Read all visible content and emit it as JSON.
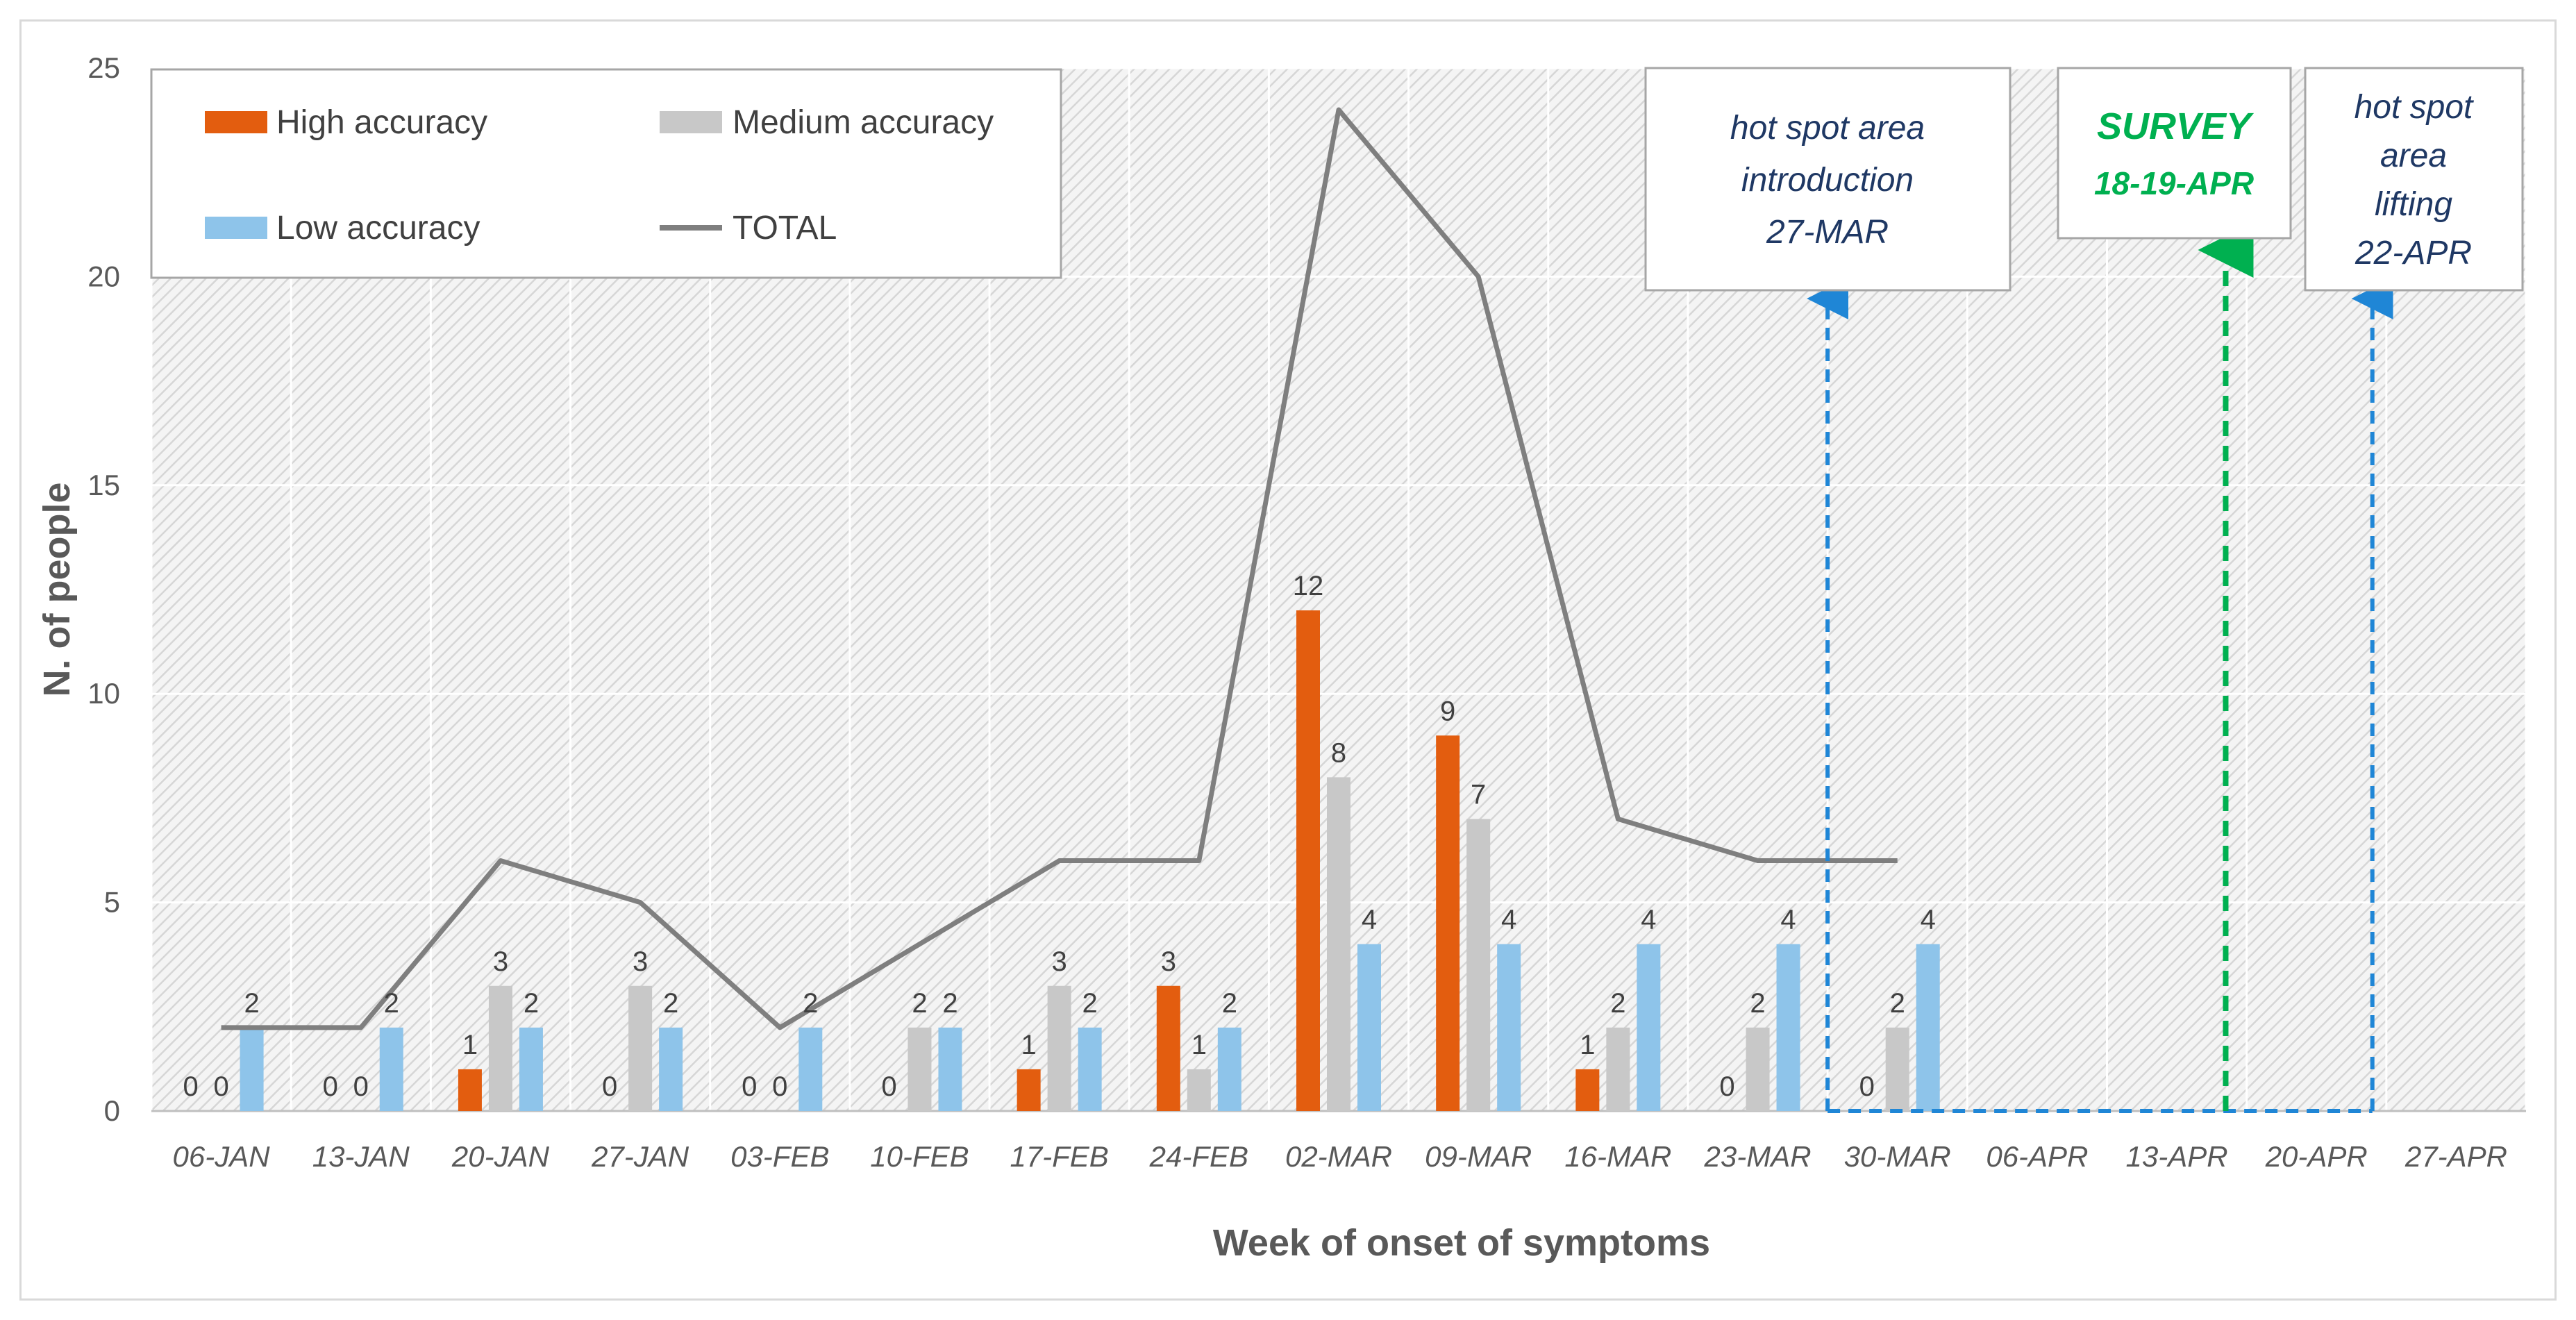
{
  "chart_data": {
    "type": "bar",
    "title": "",
    "xlabel": "Week of onset of symptoms",
    "ylabel": "N. of people",
    "ylim": [
      0,
      25
    ],
    "yticks": [
      0,
      5,
      10,
      15,
      20,
      25
    ],
    "grid": true,
    "legend_position": "top-left",
    "categories": [
      "06-JAN",
      "13-JAN",
      "20-JAN",
      "27-JAN",
      "03-FEB",
      "10-FEB",
      "17-FEB",
      "24-FEB",
      "02-MAR",
      "09-MAR",
      "16-MAR",
      "23-MAR",
      "30-MAR",
      "06-APR",
      "13-APR",
      "20-APR",
      "27-APR"
    ],
    "series": [
      {
        "name": "High accuracy",
        "kind": "bar",
        "color": "#e35d0f",
        "values": [
          0,
          0,
          1,
          0,
          0,
          0,
          1,
          3,
          12,
          9,
          1,
          0,
          0,
          null,
          null,
          null,
          null
        ]
      },
      {
        "name": "Medium accuracy",
        "kind": "bar",
        "color": "#c8c8c8",
        "values": [
          0,
          0,
          3,
          3,
          0,
          2,
          3,
          1,
          8,
          7,
          2,
          2,
          2,
          null,
          null,
          null,
          null
        ]
      },
      {
        "name": "Low accuracy",
        "kind": "bar",
        "color": "#8ec4ea",
        "values": [
          2,
          2,
          2,
          2,
          2,
          2,
          2,
          2,
          4,
          4,
          4,
          4,
          4,
          null,
          null,
          null,
          null
        ]
      },
      {
        "name": "TOTAL",
        "kind": "line",
        "color": "#7f7f7f",
        "values": [
          2,
          2,
          6,
          5,
          2,
          4,
          6,
          6,
          24,
          20,
          7,
          6,
          6,
          null,
          null,
          null,
          null
        ]
      }
    ],
    "data_labels": {
      "High accuracy": [
        "0",
        "0",
        "1",
        "0",
        "0",
        "0",
        "1",
        "3",
        "12",
        "9",
        "1",
        "0",
        "0"
      ],
      "Medium accuracy": [
        "0",
        "0",
        "3",
        "3",
        "0",
        "2",
        "3",
        "1",
        "8",
        "7",
        "2",
        "2",
        "2"
      ],
      "Low accuracy": [
        "2",
        "2",
        "2",
        "2",
        "2",
        "2",
        "2",
        "2",
        "4",
        "4",
        "4",
        "4",
        "4"
      ]
    },
    "annotations": [
      {
        "id": "intro",
        "lines": [
          "hot spot area",
          "introduction",
          "27-MAR"
        ],
        "color": "#1f3864",
        "arrow_color": "#1f86d6",
        "at": "27-MAR"
      },
      {
        "id": "survey",
        "lines": [
          "SURVEY",
          "18-19-APR"
        ],
        "color": "#00b050",
        "arrow_color": "#00b050",
        "at": "18-19-APR"
      },
      {
        "id": "lifting",
        "lines": [
          "hot spot",
          "area",
          "lifting",
          "22-APR"
        ],
        "color": "#1f3864",
        "arrow_color": "#1f86d6",
        "at": "22-APR"
      }
    ]
  }
}
